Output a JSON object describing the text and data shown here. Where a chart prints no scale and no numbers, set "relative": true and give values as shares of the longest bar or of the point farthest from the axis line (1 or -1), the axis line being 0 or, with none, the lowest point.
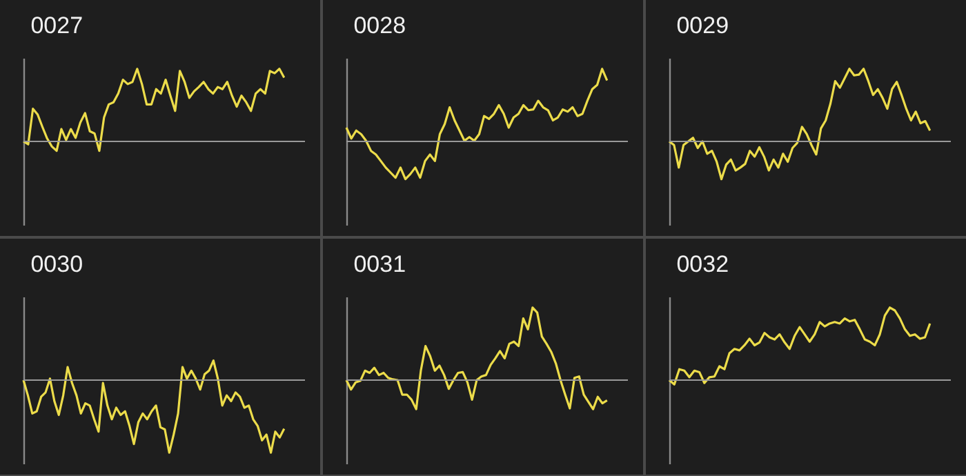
{
  "chart_data": [
    {
      "type": "line",
      "title": "0027",
      "relative": true,
      "categories": [
        null,
        null,
        null,
        null,
        null,
        null,
        null,
        null,
        null,
        null,
        null,
        null,
        null,
        null,
        null,
        null,
        null,
        null,
        null,
        null,
        null,
        null,
        null,
        null,
        null,
        null,
        null,
        null,
        null,
        null,
        null,
        null,
        null,
        null,
        null,
        null,
        null,
        null,
        null,
        null,
        null,
        null,
        null,
        null,
        null,
        null,
        null,
        null,
        null,
        null,
        null,
        null,
        null,
        null,
        null,
        null
      ],
      "series": [
        {
          "color": "#ecdc4a",
          "values": [
            0,
            -0.04,
            0.45,
            0.37,
            0.2,
            0.04,
            -0.07,
            -0.13,
            0.17,
            0.02,
            0.17,
            0.05,
            0.26,
            0.39,
            0.14,
            0.11,
            -0.13,
            0.33,
            0.51,
            0.54,
            0.66,
            0.85,
            0.79,
            0.82,
            1,
            0.79,
            0.51,
            0.51,
            0.72,
            0.66,
            0.85,
            0.63,
            0.42,
            0.97,
            0.82,
            0.6,
            0.69,
            0.75,
            0.82,
            0.72,
            0.66,
            0.75,
            0.72,
            0.82,
            0.63,
            0.48,
            0.63,
            0.54,
            0.42,
            0.66,
            0.72,
            0.66,
            0.97,
            0.94,
            1,
            0.88
          ]
        }
      ]
    },
    {
      "type": "line",
      "title": "0028",
      "relative": true,
      "categories": [
        null,
        null,
        null,
        null,
        null,
        null,
        null,
        null,
        null,
        null,
        null,
        null,
        null,
        null,
        null,
        null,
        null,
        null,
        null,
        null,
        null,
        null,
        null,
        null,
        null,
        null,
        null,
        null,
        null,
        null,
        null,
        null,
        null,
        null,
        null,
        null,
        null,
        null,
        null,
        null,
        null,
        null,
        null,
        null,
        null,
        null,
        null,
        null,
        null,
        null,
        null,
        null,
        null,
        null
      ],
      "series": [
        {
          "color": "#ecdc4a",
          "values": [
            0.19,
            0.04,
            0.15,
            0.1,
            0.01,
            -0.13,
            -0.18,
            -0.27,
            -0.36,
            -0.43,
            -0.5,
            -0.36,
            -0.52,
            -0.45,
            -0.36,
            -0.5,
            -0.27,
            -0.18,
            -0.27,
            0.1,
            0.24,
            0.47,
            0.29,
            0.15,
            0.01,
            0.06,
            0.01,
            0.1,
            0.35,
            0.31,
            0.38,
            0.5,
            0.38,
            0.19,
            0.33,
            0.38,
            0.5,
            0.43,
            0.44,
            0.56,
            0.47,
            0.43,
            0.29,
            0.33,
            0.44,
            0.41,
            0.47,
            0.35,
            0.38,
            0.56,
            0.72,
            0.78,
            1,
            0.84
          ]
        }
      ]
    },
    {
      "type": "line",
      "title": "0029",
      "relative": true,
      "categories": [
        null,
        null,
        null,
        null,
        null,
        null,
        null,
        null,
        null,
        null,
        null,
        null,
        null,
        null,
        null,
        null,
        null,
        null,
        null,
        null,
        null,
        null,
        null,
        null,
        null,
        null,
        null,
        null,
        null,
        null,
        null,
        null,
        null,
        null,
        null,
        null,
        null,
        null,
        null,
        null,
        null,
        null,
        null,
        null,
        null,
        null,
        null,
        null,
        null,
        null,
        null,
        null,
        null,
        null,
        null,
        null
      ],
      "series": [
        {
          "color": "#ecdc4a",
          "values": [
            0,
            -0.05,
            -0.36,
            -0.05,
            0,
            0.05,
            -0.09,
            0,
            -0.17,
            -0.13,
            -0.28,
            -0.52,
            -0.32,
            -0.25,
            -0.4,
            -0.36,
            -0.31,
            -0.13,
            -0.21,
            -0.08,
            -0.21,
            -0.4,
            -0.25,
            -0.36,
            -0.17,
            -0.28,
            -0.09,
            -0.02,
            0.2,
            0.1,
            -0.05,
            -0.18,
            0.18,
            0.29,
            0.52,
            0.83,
            0.74,
            0.87,
            1,
            0.91,
            0.92,
            1,
            0.83,
            0.64,
            0.72,
            0.6,
            0.45,
            0.72,
            0.82,
            0.64,
            0.45,
            0.29,
            0.41,
            0.25,
            0.28,
            0.15
          ]
        }
      ]
    },
    {
      "type": "line",
      "title": "0030",
      "relative": true,
      "categories": [
        null,
        null,
        null,
        null,
        null,
        null,
        null,
        null,
        null,
        null,
        null,
        null,
        null,
        null,
        null,
        null,
        null,
        null,
        null,
        null,
        null,
        null,
        null,
        null,
        null,
        null,
        null,
        null,
        null,
        null,
        null,
        null,
        null,
        null,
        null,
        null,
        null,
        null,
        null,
        null,
        null,
        null,
        null,
        null,
        null,
        null,
        null,
        null,
        null,
        null,
        null,
        null,
        null,
        null,
        null,
        null,
        null,
        null,
        null,
        null
      ],
      "series": [
        {
          "color": "#ecdc4a",
          "values": [
            0,
            -0.21,
            -0.46,
            -0.43,
            -0.23,
            -0.17,
            0.02,
            -0.29,
            -0.48,
            -0.21,
            0.18,
            -0.04,
            -0.21,
            -0.46,
            -0.32,
            -0.35,
            -0.54,
            -0.71,
            -0.04,
            -0.35,
            -0.54,
            -0.38,
            -0.48,
            -0.43,
            -0.63,
            -0.88,
            -0.58,
            -0.46,
            -0.54,
            -0.43,
            -0.35,
            -0.65,
            -0.68,
            -1,
            -0.75,
            -0.46,
            0.18,
            0.02,
            0.13,
            0.02,
            -0.13,
            0.08,
            0.13,
            0.27,
            0.02,
            -0.35,
            -0.21,
            -0.29,
            -0.17,
            -0.23,
            -0.38,
            -0.35,
            -0.54,
            -0.63,
            -0.83,
            -0.75,
            -1,
            -0.71,
            -0.79,
            -0.67
          ]
        }
      ]
    },
    {
      "type": "line",
      "title": "0031",
      "relative": true,
      "categories": [
        null,
        null,
        null,
        null,
        null,
        null,
        null,
        null,
        null,
        null,
        null,
        null,
        null,
        null,
        null,
        null,
        null,
        null,
        null,
        null,
        null,
        null,
        null,
        null,
        null,
        null,
        null,
        null,
        null,
        null,
        null,
        null,
        null,
        null,
        null,
        null,
        null,
        null,
        null,
        null,
        null,
        null,
        null,
        null,
        null,
        null,
        null,
        null,
        null,
        null,
        null,
        null,
        null,
        null,
        null,
        null,
        null
      ],
      "series": [
        {
          "color": "#ecdc4a",
          "values": [
            0,
            -0.13,
            -0.03,
            -0.01,
            0.13,
            0.1,
            0.17,
            0.07,
            0.1,
            0.03,
            0.01,
            0,
            -0.2,
            -0.2,
            -0.27,
            -0.4,
            0.13,
            0.47,
            0.33,
            0.13,
            0.2,
            0.07,
            -0.12,
            0,
            0.1,
            0.11,
            -0.03,
            -0.27,
            0,
            0.05,
            0.07,
            0.21,
            0.3,
            0.4,
            0.3,
            0.5,
            0.53,
            0.47,
            0.85,
            0.7,
            1,
            0.93,
            0.6,
            0.5,
            0.39,
            0.23,
            0,
            -0.2,
            -0.39,
            0.03,
            0.05,
            -0.2,
            -0.3,
            -0.4,
            -0.23,
            -0.32,
            -0.28
          ]
        }
      ]
    },
    {
      "type": "line",
      "title": "0032",
      "relative": true,
      "categories": [
        null,
        null,
        null,
        null,
        null,
        null,
        null,
        null,
        null,
        null,
        null,
        null,
        null,
        null,
        null,
        null,
        null,
        null,
        null,
        null,
        null,
        null,
        null,
        null,
        null,
        null,
        null,
        null,
        null,
        null,
        null,
        null,
        null,
        null,
        null,
        null,
        null,
        null,
        null,
        null,
        null,
        null,
        null,
        null,
        null,
        null,
        null,
        null,
        null,
        null,
        null,
        null,
        null
      ],
      "series": [
        {
          "color": "#ecdc4a",
          "values": [
            0,
            -0.06,
            0.15,
            0.13,
            0.04,
            0.13,
            0.11,
            -0.04,
            0.04,
            0.05,
            0.19,
            0.15,
            0.37,
            0.43,
            0.41,
            0.48,
            0.57,
            0.48,
            0.52,
            0.65,
            0.59,
            0.56,
            0.63,
            0.52,
            0.43,
            0.61,
            0.73,
            0.63,
            0.53,
            0.63,
            0.8,
            0.74,
            0.78,
            0.8,
            0.78,
            0.85,
            0.81,
            0.83,
            0.7,
            0.56,
            0.53,
            0.48,
            0.63,
            0.89,
            1,
            0.96,
            0.85,
            0.7,
            0.61,
            0.63,
            0.57,
            0.59,
            0.78
          ]
        }
      ]
    }
  ]
}
